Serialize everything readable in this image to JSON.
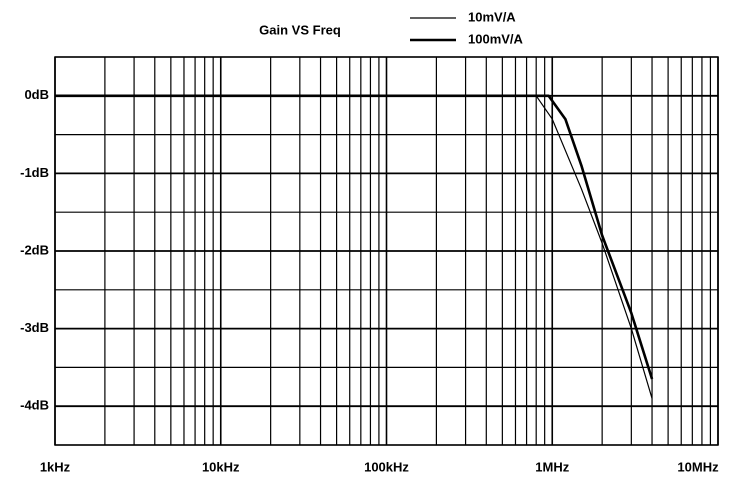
{
  "chart_data": {
    "type": "line",
    "title": "Gain VS Freq",
    "xscale": "log",
    "xlim": [
      1000,
      10000000
    ],
    "xticks": [
      {
        "value": 1000,
        "label": "1kHz"
      },
      {
        "value": 10000,
        "label": "10kHz"
      },
      {
        "value": 100000,
        "label": "100kHz"
      },
      {
        "value": 1000000,
        "label": "1MHz"
      },
      {
        "value": 10000000,
        "label": "10MHz"
      }
    ],
    "xminor_ticks": [
      2000,
      3000,
      4000,
      5000,
      6000,
      7000,
      8000,
      9000,
      20000,
      30000,
      40000,
      50000,
      60000,
      70000,
      80000,
      90000,
      200000,
      300000,
      400000,
      500000,
      600000,
      700000,
      800000,
      900000,
      2000000,
      3000000,
      4000000,
      5000000,
      6000000,
      7000000,
      8000000,
      9000000
    ],
    "ylim": [
      -4.5,
      0.5
    ],
    "yticks": [
      {
        "value": 0,
        "label": "0dB"
      },
      {
        "value": -1,
        "label": "-1dB"
      },
      {
        "value": -2,
        "label": "-2dB"
      },
      {
        "value": -3,
        "label": "-3dB"
      },
      {
        "value": -4,
        "label": "-4dB"
      }
    ],
    "yminor_ticks": [
      0.5,
      -0.5,
      -1.5,
      -2.5,
      -3.5,
      -4.5
    ],
    "grid": true,
    "series": [
      {
        "name": "10mV/A",
        "color": "#000000",
        "width": 1.2,
        "x": [
          1000,
          800000,
          1000000,
          1500000,
          2000000,
          3000000,
          4000000
        ],
        "values": [
          0,
          0,
          -0.3,
          -1.2,
          -1.9,
          -3.0,
          -3.9
        ]
      },
      {
        "name": "100mV/A",
        "color": "#000000",
        "width": 2.6,
        "x": [
          1000,
          950000,
          1200000,
          1500000,
          2000000,
          3000000,
          4000000
        ],
        "values": [
          0,
          0,
          -0.3,
          -0.9,
          -1.8,
          -2.8,
          -3.65
        ]
      }
    ]
  }
}
